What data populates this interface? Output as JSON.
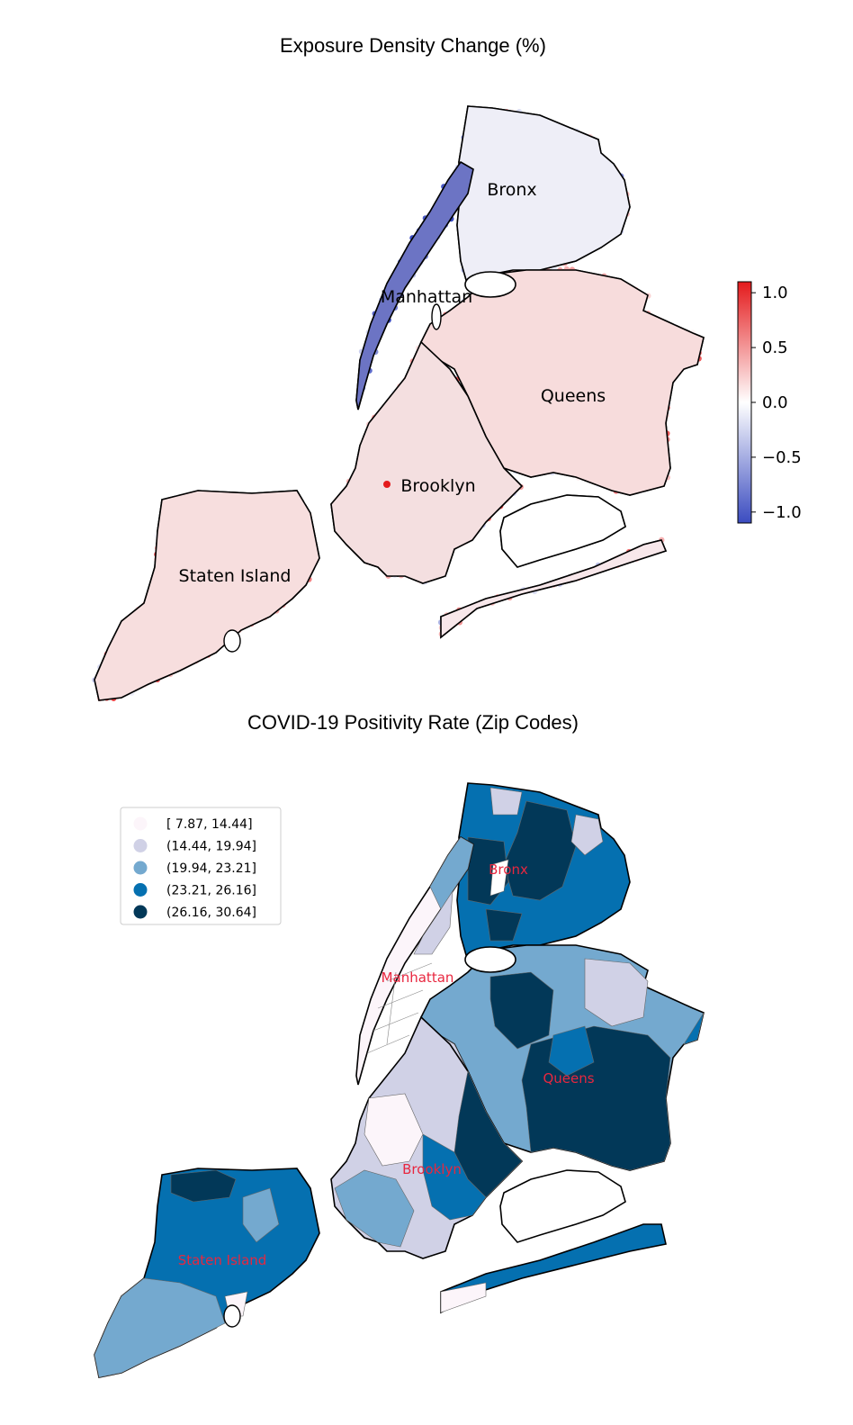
{
  "panel1": {
    "title": "Exposure Density Change (%)",
    "labels": {
      "bronx": "Bronx",
      "manhattan": "Manhattan",
      "queens": "Queens",
      "brooklyn": "Brooklyn",
      "staten_island": "Staten Island"
    },
    "colorbar": {
      "ticks": [
        "1.0",
        "0.5",
        "0.0",
        "−0.5",
        "−1.0"
      ],
      "range": [
        -1.1,
        1.1
      ],
      "colors": [
        "#3b4cc0",
        "#ffffff",
        "#e41a1c"
      ]
    }
  },
  "panel2": {
    "title": "COVID-19 Positivity Rate (Zip Codes)",
    "labels": {
      "bronx": "Bronx",
      "manhattan": "Manhattan",
      "queens": "Queens",
      "brooklyn": "Brooklyn",
      "staten_island": "Staten Island"
    },
    "legend": [
      {
        "label": "[ 7.87, 14.44]",
        "color": "#fcf5fa"
      },
      {
        "label": "(14.44, 19.94]",
        "color": "#d0d1e6"
      },
      {
        "label": "(19.94, 23.21]",
        "color": "#74a9cf"
      },
      {
        "label": "(23.21, 26.16]",
        "color": "#0570b0"
      },
      {
        "label": "(26.16, 30.64]",
        "color": "#023858"
      }
    ]
  }
}
